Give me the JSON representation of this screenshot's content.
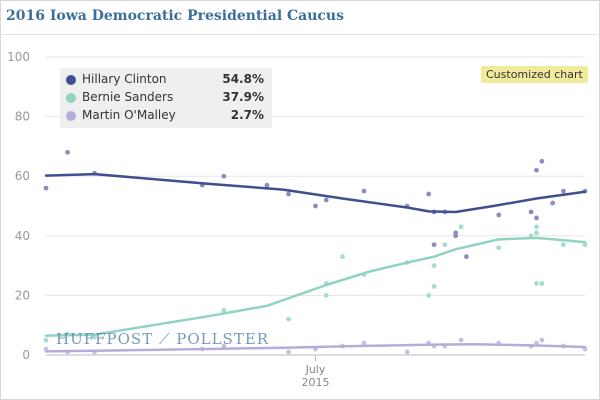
{
  "header": {
    "title": "2016 Iowa Democratic Presidential Caucus"
  },
  "badge": {
    "label": "Customized chart"
  },
  "watermark": {
    "text": "HUFFPOST ⟋ POLLSTER"
  },
  "chart_data": {
    "type": "line",
    "title": "2016 Iowa Democratic Presidential Caucus",
    "xlabel": "",
    "ylabel": "",
    "x_range": [
      0,
      1
    ],
    "ylim": [
      0,
      100
    ],
    "yticks": [
      0,
      20,
      40,
      60,
      80,
      100
    ],
    "xticks": [
      {
        "x": 0.5,
        "label": "July",
        "sublabel": "2015"
      }
    ],
    "grid": true,
    "legend_position": "top-left",
    "series": [
      {
        "name": "Hillary Clinton",
        "latest": "54.8%",
        "color": "#3f4f8f",
        "dot_color": "#8a8fbe",
        "trend": [
          [
            0.0,
            60.2
          ],
          [
            0.09,
            60.7
          ],
          [
            0.3,
            57.5
          ],
          [
            0.44,
            55.5
          ],
          [
            0.55,
            52.5
          ],
          [
            0.67,
            49.5
          ],
          [
            0.71,
            48.2
          ],
          [
            0.76,
            48.0
          ],
          [
            0.83,
            50.0
          ],
          [
            0.91,
            52.5
          ],
          [
            1.0,
            54.8
          ]
        ],
        "polls": [
          [
            0.0,
            56
          ],
          [
            0.04,
            68
          ],
          [
            0.09,
            61
          ],
          [
            0.29,
            57
          ],
          [
            0.33,
            60
          ],
          [
            0.41,
            57
          ],
          [
            0.45,
            54
          ],
          [
            0.5,
            50
          ],
          [
            0.52,
            52
          ],
          [
            0.59,
            55
          ],
          [
            0.67,
            50
          ],
          [
            0.71,
            54
          ],
          [
            0.72,
            48
          ],
          [
            0.74,
            48
          ],
          [
            0.76,
            40
          ],
          [
            0.76,
            41
          ],
          [
            0.78,
            33
          ],
          [
            0.72,
            37
          ],
          [
            0.84,
            47
          ],
          [
            0.9,
            48
          ],
          [
            0.91,
            46
          ],
          [
            0.91,
            62
          ],
          [
            0.92,
            65
          ],
          [
            0.94,
            51
          ],
          [
            0.96,
            55
          ],
          [
            1.0,
            55
          ]
        ]
      },
      {
        "name": "Bernie Sanders",
        "latest": "37.9%",
        "color": "#8fd3c3",
        "dot_color": "#a5ddd0",
        "trend": [
          [
            0.0,
            6.5
          ],
          [
            0.09,
            6.8
          ],
          [
            0.3,
            13.0
          ],
          [
            0.41,
            16.5
          ],
          [
            0.52,
            23.5
          ],
          [
            0.6,
            28.0
          ],
          [
            0.67,
            31.0
          ],
          [
            0.72,
            33.0
          ],
          [
            0.76,
            35.5
          ],
          [
            0.84,
            38.8
          ],
          [
            0.91,
            39.3
          ],
          [
            1.0,
            37.9
          ]
        ],
        "polls": [
          [
            0.0,
            5
          ],
          [
            0.04,
            7
          ],
          [
            0.09,
            6
          ],
          [
            0.33,
            15
          ],
          [
            0.45,
            12
          ],
          [
            0.52,
            24
          ],
          [
            0.52,
            20
          ],
          [
            0.55,
            33
          ],
          [
            0.59,
            27
          ],
          [
            0.67,
            31
          ],
          [
            0.71,
            20
          ],
          [
            0.72,
            23
          ],
          [
            0.72,
            30
          ],
          [
            0.74,
            37
          ],
          [
            0.77,
            43
          ],
          [
            0.84,
            36
          ],
          [
            0.9,
            40
          ],
          [
            0.91,
            41
          ],
          [
            0.91,
            43
          ],
          [
            0.92,
            24
          ],
          [
            0.91,
            24
          ],
          [
            0.96,
            37
          ],
          [
            1.0,
            37
          ]
        ]
      },
      {
        "name": "Martin O'Malley",
        "latest": "2.7%",
        "color": "#b7acd9",
        "dot_color": "#c8c0e2",
        "trend": [
          [
            0.0,
            1.2
          ],
          [
            0.09,
            1.4
          ],
          [
            0.3,
            2.0
          ],
          [
            0.45,
            2.5
          ],
          [
            0.6,
            3.1
          ],
          [
            0.72,
            3.5
          ],
          [
            0.8,
            3.6
          ],
          [
            0.91,
            3.2
          ],
          [
            1.0,
            2.7
          ]
        ],
        "polls": [
          [
            0.0,
            2
          ],
          [
            0.04,
            1
          ],
          [
            0.09,
            1
          ],
          [
            0.29,
            2
          ],
          [
            0.33,
            3
          ],
          [
            0.45,
            1
          ],
          [
            0.5,
            2
          ],
          [
            0.55,
            3
          ],
          [
            0.59,
            4
          ],
          [
            0.67,
            1
          ],
          [
            0.71,
            4
          ],
          [
            0.72,
            3
          ],
          [
            0.74,
            3
          ],
          [
            0.77,
            5
          ],
          [
            0.84,
            4
          ],
          [
            0.9,
            3
          ],
          [
            0.91,
            4
          ],
          [
            0.92,
            5
          ],
          [
            0.96,
            3
          ],
          [
            1.0,
            2
          ]
        ]
      }
    ]
  }
}
